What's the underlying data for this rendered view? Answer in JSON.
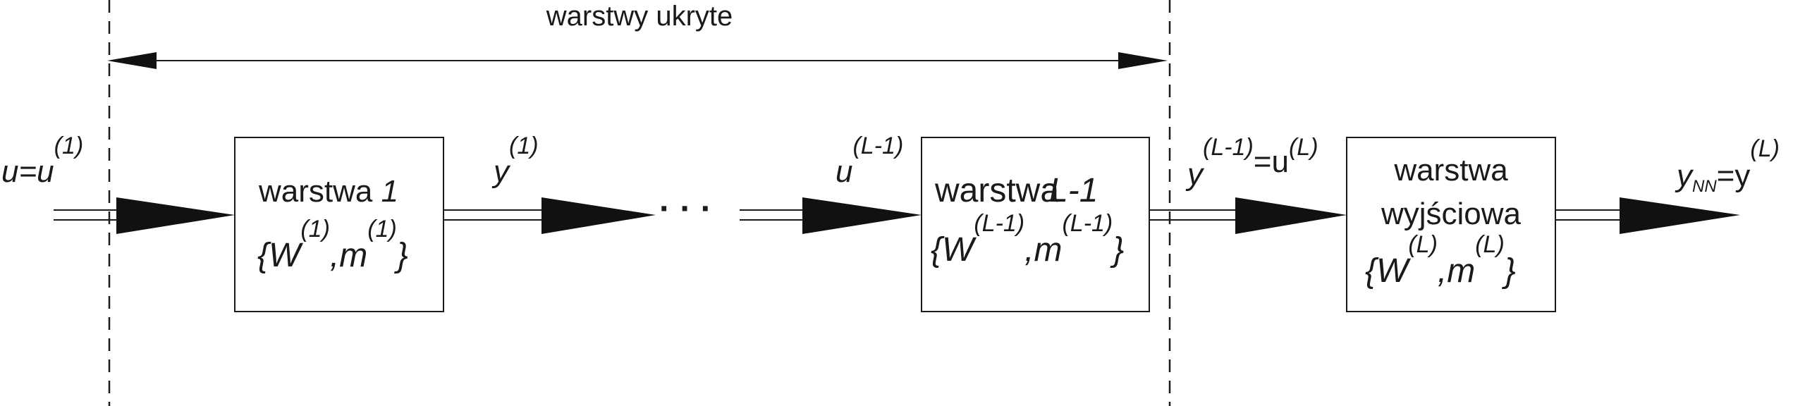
{
  "title": "warstwy ukryte",
  "input": {
    "label": "u=u",
    "sup": "(1)"
  },
  "layer1": {
    "name": "warstwa ",
    "index": "1",
    "params_open": "{W",
    "sup_w": "(1)",
    "params_mid": ",m",
    "sup_m": "(1)",
    "params_close": "}"
  },
  "y1": {
    "label": "y",
    "sup": "(1)"
  },
  "ellipsis": "· · ·",
  "uL1": {
    "label": "u",
    "sup": "(L-1)"
  },
  "layerL1": {
    "name": "warstwa",
    "index": "L-1",
    "params_open": "{W",
    "sup_w": "(L-1)",
    "params_mid": ",m",
    "sup_m": "(L-1)",
    "params_close": "}"
  },
  "yL1": {
    "label": "y",
    "sup": "(L-1)",
    "eq": "=u",
    "sup2": "(L)"
  },
  "output_layer": {
    "line1": "warstwa",
    "line2": "wyjściowa",
    "params_open": "{W",
    "sup_w": "(L)",
    "params_mid": ",m",
    "sup_m": "(L)",
    "params_close": "}"
  },
  "output": {
    "label": "y",
    "sub": "NN",
    "eq": "=y",
    "sup": "(L)"
  }
}
